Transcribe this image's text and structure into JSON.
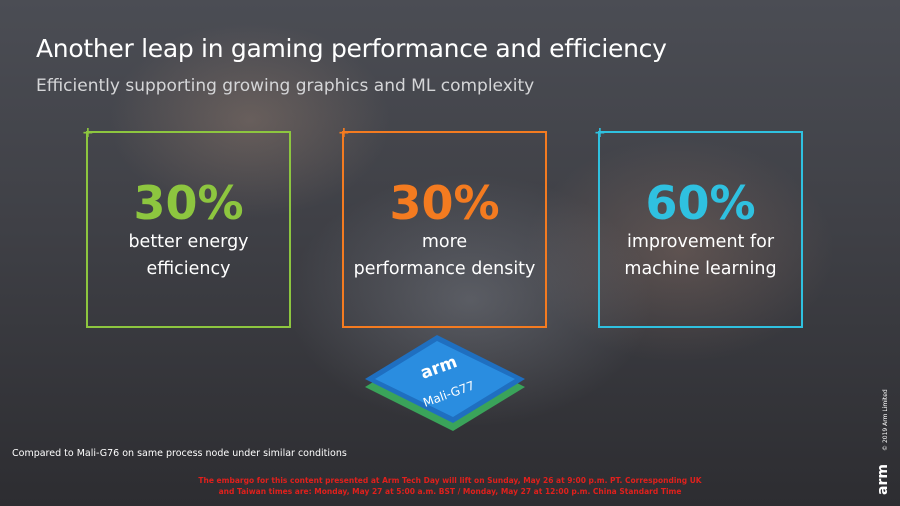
{
  "title": "Another leap in gaming performance and efficiency",
  "subtitle": "Efficiently supporting growing graphics and ML complexity",
  "cards": [
    {
      "value": "30%",
      "lines": [
        "better energy",
        "efficiency"
      ]
    },
    {
      "value": "30%",
      "lines": [
        "more",
        "performance density"
      ]
    },
    {
      "value": "60%",
      "lines": [
        "improvement for",
        "machine learning"
      ]
    }
  ],
  "chip": {
    "brand": "arm",
    "model": "Mali-G77"
  },
  "footnote": "Compared to Mali-G76 on same process node under similar conditions",
  "embargo": [
    "The embargo for this content presented at Arm Tech Day will lift on Sunday, May 26 at 9:00 p.m. PT.  Corresponding UK",
    "and Taiwan times are: Monday, May 27 at 5:00 a.m. BST / Monday, May 27 at 12:00 p.m. China Standard Time"
  ],
  "logo": "arm",
  "copyright": "© 2019 Arm Limited"
}
